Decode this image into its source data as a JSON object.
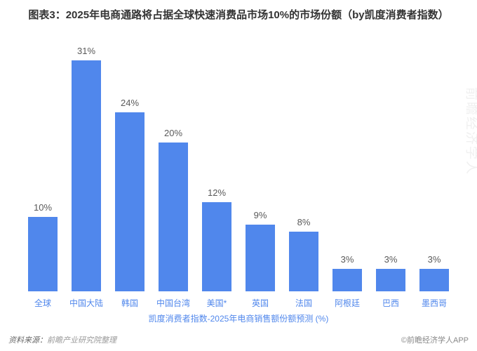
{
  "chart": {
    "type": "bar",
    "title": "图表3：2025年电商通路将占据全球快速消费品市场10%的市场份额（by凯度消费者指数）",
    "title_fontsize": 15,
    "title_color": "#333333",
    "categories": [
      "全球",
      "中国大陆",
      "韩国",
      "中国台湾",
      "美国*",
      "英国",
      "法国",
      "阿根廷",
      "巴西",
      "墨西哥"
    ],
    "values": [
      10,
      31,
      24,
      20,
      12,
      9,
      8,
      3,
      3,
      3
    ],
    "value_suffix": "%",
    "bar_color": "#5087ec",
    "value_label_color": "#5a5a5a",
    "value_label_fontsize": 13,
    "x_label_color": "#5087ec",
    "x_label_fontsize": 12,
    "axis_title": "凯度消费者指数-2025年电商销售额份额预测 (%)",
    "axis_title_color": "#5087ec",
    "axis_title_fontsize": 12,
    "ylim_max": 33,
    "background_color": "#ffffff",
    "bar_width_ratio": 0.68
  },
  "source": {
    "label": "资料来源：",
    "label_color": "#666666",
    "text": "前瞻产业研究院整理",
    "text_color": "#999999",
    "fontsize": 11,
    "font_style": "italic"
  },
  "attribution": {
    "text": "©前瞻经济学人APP",
    "color": "#888888",
    "fontsize": 11
  },
  "watermark": {
    "text": "前瞻经济学人",
    "color": "#f0f0f0",
    "fontsize": 19
  }
}
